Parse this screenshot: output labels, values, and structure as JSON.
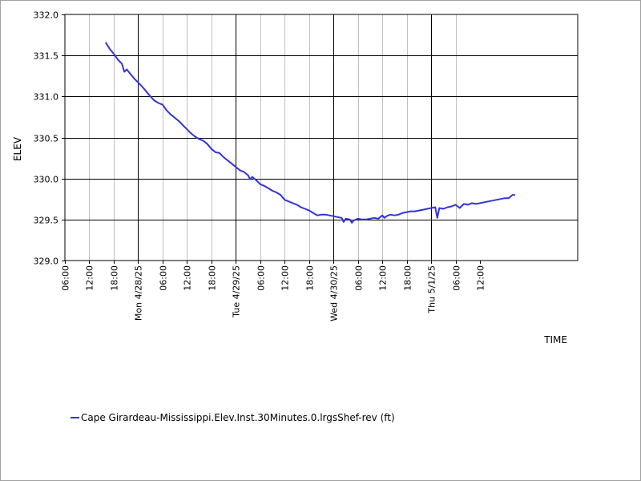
{
  "chart_data": {
    "type": "line",
    "xlabel": "TIME",
    "ylabel": "ELEV",
    "ylim": [
      329.0,
      332.0
    ],
    "xlim_hours": [
      0,
      126
    ],
    "y_ticks": [
      "332.0",
      "331.5",
      "331.0",
      "330.5",
      "330.0",
      "329.5",
      "329.0"
    ],
    "x_ticks": [
      "06:00",
      "12:00",
      "18:00",
      "Mon 4/28/25",
      "06:00",
      "12:00",
      "18:00",
      "Tue 4/29/25",
      "06:00",
      "12:00",
      "18:00",
      "Wed 4/30/25",
      "06:00",
      "12:00",
      "18:00",
      "Thu 5/1/25",
      "06:00",
      "12:00"
    ],
    "grid": true,
    "legend_position": "bottom-left",
    "series": [
      {
        "name": "Cape Girardeau-Mississippi.Elev.Inst.30Minutes.0.lrgsShef-rev (ft)",
        "color": "#3333dd",
        "points": [
          [
            10.0,
            331.66
          ],
          [
            11.0,
            331.58
          ],
          [
            12.0,
            331.52
          ],
          [
            13.0,
            331.45
          ],
          [
            14.0,
            331.4
          ],
          [
            14.6,
            331.3
          ],
          [
            15.2,
            331.33
          ],
          [
            16.0,
            331.28
          ],
          [
            17.0,
            331.22
          ],
          [
            18.0,
            331.17
          ],
          [
            19.0,
            331.12
          ],
          [
            20.0,
            331.06
          ],
          [
            21.0,
            331.0
          ],
          [
            22.0,
            330.95
          ],
          [
            23.0,
            330.92
          ],
          [
            24.0,
            330.9
          ],
          [
            25.0,
            330.83
          ],
          [
            26.0,
            330.78
          ],
          [
            27.0,
            330.74
          ],
          [
            28.0,
            330.7
          ],
          [
            29.0,
            330.65
          ],
          [
            30.0,
            330.6
          ],
          [
            31.0,
            330.55
          ],
          [
            32.0,
            330.51
          ],
          [
            33.0,
            330.48
          ],
          [
            34.0,
            330.46
          ],
          [
            35.0,
            330.42
          ],
          [
            36.0,
            330.36
          ],
          [
            37.0,
            330.32
          ],
          [
            38.0,
            330.31
          ],
          [
            39.0,
            330.26
          ],
          [
            40.0,
            330.22
          ],
          [
            41.0,
            330.18
          ],
          [
            42.0,
            330.14
          ],
          [
            43.0,
            330.1
          ],
          [
            44.0,
            330.08
          ],
          [
            45.0,
            330.04
          ],
          [
            45.5,
            329.99
          ],
          [
            46.0,
            330.02
          ],
          [
            47.0,
            329.98
          ],
          [
            48.0,
            329.93
          ],
          [
            49.0,
            329.91
          ],
          [
            50.0,
            329.88
          ],
          [
            51.0,
            329.85
          ],
          [
            52.0,
            329.83
          ],
          [
            53.0,
            329.8
          ],
          [
            54.0,
            329.74
          ],
          [
            55.0,
            329.72
          ],
          [
            56.0,
            329.7
          ],
          [
            57.0,
            329.68
          ],
          [
            58.0,
            329.65
          ],
          [
            59.0,
            329.63
          ],
          [
            60.0,
            329.61
          ],
          [
            61.0,
            329.58
          ],
          [
            62.0,
            329.55
          ],
          [
            63.0,
            329.56
          ],
          [
            64.0,
            329.56
          ],
          [
            65.0,
            329.55
          ],
          [
            66.0,
            329.54
          ],
          [
            67.0,
            329.53
          ],
          [
            68.0,
            329.52
          ],
          [
            68.5,
            329.47
          ],
          [
            69.0,
            329.51
          ],
          [
            70.0,
            329.5
          ],
          [
            70.5,
            329.46
          ],
          [
            71.0,
            329.49
          ],
          [
            72.0,
            329.51
          ],
          [
            73.0,
            329.5
          ],
          [
            74.0,
            329.5
          ],
          [
            75.0,
            329.51
          ],
          [
            76.0,
            329.52
          ],
          [
            77.0,
            329.51
          ],
          [
            78.0,
            329.55
          ],
          [
            78.5,
            329.52
          ],
          [
            79.0,
            329.54
          ],
          [
            80.0,
            329.56
          ],
          [
            81.0,
            329.55
          ],
          [
            82.0,
            329.56
          ],
          [
            83.0,
            329.58
          ],
          [
            84.0,
            329.59
          ],
          [
            85.0,
            329.6
          ],
          [
            86.0,
            329.6
          ],
          [
            87.0,
            329.61
          ],
          [
            88.0,
            329.62
          ],
          [
            89.0,
            329.63
          ],
          [
            90.0,
            329.64
          ],
          [
            91.0,
            329.65
          ],
          [
            91.5,
            329.52
          ],
          [
            92.0,
            329.64
          ],
          [
            93.0,
            329.63
          ],
          [
            94.0,
            329.65
          ],
          [
            95.0,
            329.66
          ],
          [
            96.0,
            329.68
          ],
          [
            97.0,
            329.64
          ],
          [
            98.0,
            329.69
          ],
          [
            99.0,
            329.68
          ],
          [
            100.0,
            329.7
          ],
          [
            101.0,
            329.69
          ],
          [
            102.0,
            329.7
          ],
          [
            103.0,
            329.71
          ],
          [
            104.0,
            329.72
          ],
          [
            105.0,
            329.73
          ],
          [
            106.0,
            329.74
          ],
          [
            107.0,
            329.75
          ],
          [
            108.0,
            329.76
          ],
          [
            109.0,
            329.76
          ],
          [
            110.0,
            329.8
          ],
          [
            110.6,
            329.8
          ]
        ]
      }
    ]
  }
}
